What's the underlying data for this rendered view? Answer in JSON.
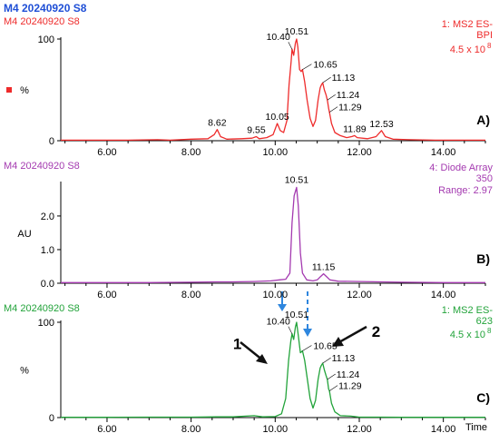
{
  "header": {
    "title": "M4 20240920 S8",
    "title_color": "#1f4fd6"
  },
  "x_axis": {
    "ticks": [
      "6.00",
      "8.00",
      "10.00",
      "12.00",
      "14.00"
    ],
    "label": "Time"
  },
  "colors": {
    "red": "#ee2b2b",
    "purple": "#a43ab0",
    "green": "#22a33a",
    "arrow_blue": "#2e86de",
    "black": "#111111"
  },
  "chart_data": [
    {
      "type": "line",
      "panel_label": "A)",
      "sample": "M4 20240920 S8",
      "info_lines": [
        "1: MS2 ES-",
        "BPI",
        "4.5 x 10"
      ],
      "info_exponent": "8",
      "ylabel": "%",
      "yticks": [
        "100",
        "0"
      ],
      "xlim": [
        4.9,
        15.0
      ],
      "ylim": [
        0,
        100
      ],
      "peak_labels": [
        {
          "text": "8.62",
          "x": 8.62,
          "y": 11
        },
        {
          "text": "9.55",
          "x": 9.55,
          "y": 4
        },
        {
          "text": "10.05",
          "x": 10.05,
          "y": 17
        },
        {
          "text": "10.40",
          "x": 10.4,
          "y": 90
        },
        {
          "text": "10.51",
          "x": 10.51,
          "y": 100
        },
        {
          "text": "10.65",
          "x": 10.65,
          "y": 70
        },
        {
          "text": "11.13",
          "x": 11.13,
          "y": 57
        },
        {
          "text": "11.24",
          "x": 11.24,
          "y": 40
        },
        {
          "text": "11.29",
          "x": 11.29,
          "y": 28
        },
        {
          "text": "11.89",
          "x": 11.89,
          "y": 5
        },
        {
          "text": "12.53",
          "x": 12.53,
          "y": 10
        }
      ],
      "points": [
        [
          4.9,
          0.5
        ],
        [
          5.5,
          0.5
        ],
        [
          6.5,
          0.5
        ],
        [
          7.2,
          1
        ],
        [
          7.5,
          0.5
        ],
        [
          8.0,
          1.5
        ],
        [
          8.4,
          2
        ],
        [
          8.55,
          6
        ],
        [
          8.62,
          11
        ],
        [
          8.7,
          4
        ],
        [
          8.85,
          1.5
        ],
        [
          9.2,
          2
        ],
        [
          9.45,
          2.5
        ],
        [
          9.55,
          4
        ],
        [
          9.62,
          2
        ],
        [
          9.8,
          3
        ],
        [
          9.95,
          6
        ],
        [
          10.05,
          17
        ],
        [
          10.12,
          10
        ],
        [
          10.2,
          8
        ],
        [
          10.28,
          20
        ],
        [
          10.33,
          55
        ],
        [
          10.38,
          78
        ],
        [
          10.4,
          90
        ],
        [
          10.44,
          84
        ],
        [
          10.48,
          96
        ],
        [
          10.51,
          100
        ],
        [
          10.54,
          92
        ],
        [
          10.58,
          70
        ],
        [
          10.62,
          68
        ],
        [
          10.65,
          70
        ],
        [
          10.7,
          58
        ],
        [
          10.76,
          40
        ],
        [
          10.83,
          22
        ],
        [
          10.9,
          14
        ],
        [
          10.96,
          20
        ],
        [
          11.02,
          40
        ],
        [
          11.07,
          52
        ],
        [
          11.1,
          55
        ],
        [
          11.13,
          57
        ],
        [
          11.17,
          50
        ],
        [
          11.21,
          45
        ],
        [
          11.24,
          40
        ],
        [
          11.27,
          32
        ],
        [
          11.29,
          28
        ],
        [
          11.34,
          17
        ],
        [
          11.42,
          8
        ],
        [
          11.55,
          5
        ],
        [
          11.7,
          3
        ],
        [
          11.82,
          4
        ],
        [
          11.89,
          5
        ],
        [
          11.95,
          3
        ],
        [
          12.2,
          2
        ],
        [
          12.4,
          4
        ],
        [
          12.53,
          10
        ],
        [
          12.62,
          4
        ],
        [
          12.8,
          1.5
        ],
        [
          13.2,
          1
        ],
        [
          13.8,
          0.5
        ],
        [
          14.5,
          0.5
        ],
        [
          15.0,
          0.5
        ]
      ]
    },
    {
      "type": "line",
      "panel_label": "B)",
      "sample": "M4 20240920 S8",
      "info_lines": [
        "4: Diode Array",
        "350",
        "Range: 2.97"
      ],
      "ylabel": "AU",
      "yticks": [
        "2.0",
        "1.0",
        "0.0"
      ],
      "ytick_values": [
        2.0,
        1.0,
        0.0
      ],
      "xlim": [
        4.9,
        15.0
      ],
      "ylim": [
        0,
        2.97
      ],
      "peak_labels": [
        {
          "text": "10.51",
          "x": 10.51,
          "y": 2.85
        },
        {
          "text": "11.15",
          "x": 11.15,
          "y": 0.28
        }
      ],
      "points": [
        [
          4.9,
          0.02
        ],
        [
          6.0,
          0.02
        ],
        [
          7.0,
          0.02
        ],
        [
          8.0,
          0.03
        ],
        [
          8.6,
          0.04
        ],
        [
          9.0,
          0.04
        ],
        [
          9.5,
          0.05
        ],
        [
          9.9,
          0.07
        ],
        [
          10.1,
          0.1
        ],
        [
          10.25,
          0.12
        ],
        [
          10.35,
          0.3
        ],
        [
          10.4,
          1.8
        ],
        [
          10.45,
          2.6
        ],
        [
          10.51,
          2.85
        ],
        [
          10.55,
          2.3
        ],
        [
          10.6,
          0.9
        ],
        [
          10.65,
          0.3
        ],
        [
          10.75,
          0.1
        ],
        [
          10.9,
          0.07
        ],
        [
          11.0,
          0.1
        ],
        [
          11.08,
          0.2
        ],
        [
          11.15,
          0.28
        ],
        [
          11.22,
          0.2
        ],
        [
          11.3,
          0.1
        ],
        [
          11.5,
          0.06
        ],
        [
          12.0,
          0.05
        ],
        [
          12.5,
          0.04
        ],
        [
          13.0,
          0.03
        ],
        [
          14.0,
          0.02
        ],
        [
          15.0,
          0.02
        ]
      ]
    },
    {
      "type": "line",
      "panel_label": "C)",
      "sample": "M4 20240920 S8",
      "info_lines": [
        "1: MS2 ES-",
        "623",
        "4.5 x 10"
      ],
      "info_exponent": "8",
      "ylabel": "%",
      "yticks": [
        "100",
        "0"
      ],
      "xlim": [
        4.9,
        15.0
      ],
      "ylim": [
        0,
        100
      ],
      "peak_labels": [
        {
          "text": "10.40",
          "x": 10.4,
          "y": 88
        },
        {
          "text": "10.51",
          "x": 10.51,
          "y": 100
        },
        {
          "text": "10.65",
          "x": 10.65,
          "y": 70
        },
        {
          "text": "11.13",
          "x": 11.13,
          "y": 57
        },
        {
          "text": "11.24",
          "x": 11.24,
          "y": 40
        },
        {
          "text": "11.29",
          "x": 11.29,
          "y": 28
        }
      ],
      "annotations": [
        {
          "text": "1",
          "x": 9.1,
          "y": 72
        },
        {
          "text": "2",
          "x": 12.4,
          "y": 85
        }
      ],
      "points": [
        [
          4.9,
          0.3
        ],
        [
          6.0,
          0.3
        ],
        [
          7.0,
          0.5
        ],
        [
          8.0,
          0.5
        ],
        [
          8.6,
          0.8
        ],
        [
          9.0,
          0.8
        ],
        [
          9.5,
          2
        ],
        [
          9.7,
          0.8
        ],
        [
          10.0,
          1
        ],
        [
          10.15,
          4
        ],
        [
          10.25,
          20
        ],
        [
          10.32,
          60
        ],
        [
          10.37,
          80
        ],
        [
          10.4,
          88
        ],
        [
          10.44,
          82
        ],
        [
          10.48,
          95
        ],
        [
          10.51,
          100
        ],
        [
          10.55,
          86
        ],
        [
          10.6,
          68
        ],
        [
          10.65,
          70
        ],
        [
          10.7,
          60
        ],
        [
          10.76,
          42
        ],
        [
          10.83,
          20
        ],
        [
          10.9,
          10
        ],
        [
          10.96,
          18
        ],
        [
          11.02,
          40
        ],
        [
          11.07,
          52
        ],
        [
          11.1,
          55
        ],
        [
          11.13,
          57
        ],
        [
          11.17,
          50
        ],
        [
          11.21,
          44
        ],
        [
          11.24,
          40
        ],
        [
          11.27,
          30
        ],
        [
          11.29,
          28
        ],
        [
          11.34,
          15
        ],
        [
          11.42,
          6
        ],
        [
          11.55,
          2
        ],
        [
          11.8,
          1.5
        ],
        [
          12.0,
          0.5
        ],
        [
          12.5,
          0.5
        ],
        [
          13.0,
          0.3
        ],
        [
          14.0,
          0.3
        ],
        [
          15.0,
          0.3
        ]
      ]
    }
  ]
}
